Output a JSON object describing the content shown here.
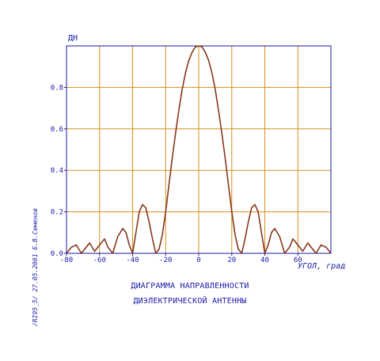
{
  "chart_data": {
    "type": "line",
    "ylabel": "ДН",
    "xlabel": "УГОЛ, град",
    "title_lines": [
      "ДИАГРАММА НАПРАВЛЕННОСТИ",
      "ДИЭЛЕКТРИЧЕСКОЙ АНТЕННЫ"
    ],
    "xlim": [
      -80,
      80
    ],
    "ylim": [
      0,
      1
    ],
    "x_ticks": [
      -80,
      -60,
      -40,
      -20,
      0,
      20,
      40,
      60
    ],
    "x_tick_labels": [
      "-80",
      "-60",
      "-40",
      "-20",
      "0",
      "20",
      "40",
      "60"
    ],
    "y_ticks": [
      0,
      0.2,
      0.4,
      0.6,
      0.8
    ],
    "y_tick_labels": [
      "0.0",
      "0.2",
      "0.4",
      "0.6",
      "0.8"
    ],
    "grid": true,
    "series": [
      {
        "color": "#b01818",
        "x": [
          -80,
          -77,
          -74,
          -71,
          -68,
          -66,
          -63,
          -60,
          -57,
          -55,
          -52,
          -49,
          -46,
          -44,
          -42,
          -40,
          -38,
          -36,
          -34,
          -32,
          -30,
          -28,
          -26,
          -24,
          -22,
          -20,
          -18,
          -16,
          -14,
          -12,
          -10,
          -8,
          -6,
          -4,
          -2,
          0,
          2,
          4,
          6,
          8,
          10,
          12,
          14,
          16,
          18,
          20,
          22,
          24,
          26,
          28,
          30,
          32,
          34,
          36,
          38,
          40,
          42,
          44,
          46,
          49,
          52,
          55,
          57,
          60,
          63,
          66,
          68,
          71,
          74,
          77,
          80
        ],
        "y": [
          0.0,
          0.03,
          0.04,
          0.0,
          0.03,
          0.05,
          0.01,
          0.04,
          0.07,
          0.03,
          0.0,
          0.08,
          0.12,
          0.1,
          0.04,
          0.0,
          0.1,
          0.2,
          0.235,
          0.22,
          0.15,
          0.07,
          0.0,
          0.02,
          0.09,
          0.2,
          0.33,
          0.46,
          0.58,
          0.69,
          0.79,
          0.87,
          0.93,
          0.97,
          0.995,
          1.0,
          0.995,
          0.97,
          0.93,
          0.87,
          0.79,
          0.69,
          0.58,
          0.46,
          0.33,
          0.2,
          0.09,
          0.02,
          0.0,
          0.07,
          0.15,
          0.22,
          0.235,
          0.2,
          0.1,
          0.0,
          0.04,
          0.1,
          0.12,
          0.08,
          0.0,
          0.03,
          0.07,
          0.04,
          0.01,
          0.05,
          0.03,
          0.0,
          0.04,
          0.03,
          0.0
        ]
      }
    ]
  },
  "side_note": "/RI95_5/  27.05.2001  Б.В.Семенов",
  "colors": {
    "grid": "#d4901e",
    "frame": "#1a1aa8",
    "curve": "#b01818",
    "curve_shadow": "#2e8a2e",
    "text": "#1a1aa8"
  }
}
